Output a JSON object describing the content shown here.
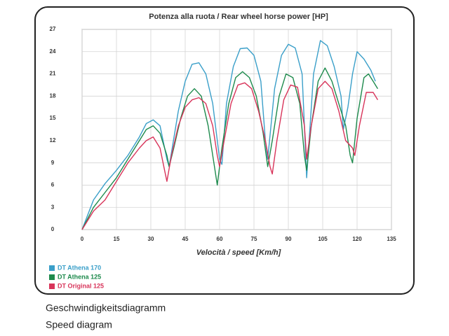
{
  "chart_data": {
    "type": "line",
    "title": "Potenza alla ruota / Rear wheel horse power [HP]",
    "x_label": "Velocità / speed [Km/h]",
    "xlim": [
      0,
      135
    ],
    "xticks": [
      0,
      15,
      30,
      45,
      60,
      75,
      90,
      105,
      120,
      135
    ],
    "ylim": [
      0,
      27
    ],
    "yticks": [
      0,
      3,
      6,
      9,
      12,
      15,
      18,
      21,
      24,
      27
    ],
    "grid": true,
    "legend": "lower left",
    "series": [
      {
        "name": "DT Athena 170",
        "color": "#3a9fc9",
        "x": [
          0,
          5,
          10,
          15,
          20,
          25,
          28,
          31,
          34,
          37,
          38,
          42,
          45,
          48,
          51,
          54,
          57,
          60,
          61,
          63,
          66,
          69,
          72,
          75,
          78,
          80,
          81,
          84,
          87,
          90,
          93,
          96,
          97,
          98,
          101,
          104,
          107,
          110,
          113,
          114,
          116,
          118,
          120,
          123,
          126,
          128
        ],
        "values": [
          0,
          4,
          6.2,
          8,
          10,
          12.5,
          14.3,
          14.8,
          14,
          9.5,
          8.5,
          16,
          20,
          22.3,
          22.5,
          21,
          17,
          9.5,
          8.8,
          17,
          22,
          24.4,
          24.5,
          23.5,
          20,
          12,
          9.5,
          19,
          23.5,
          25,
          24.5,
          21,
          14,
          7,
          21,
          25.5,
          24.8,
          22,
          18,
          13.5,
          16.5,
          21,
          24,
          23,
          21.5,
          20
        ]
      },
      {
        "name": "DT Athena 125",
        "color": "#1d8a4c",
        "x": [
          0,
          5,
          10,
          15,
          20,
          25,
          28,
          31,
          34,
          37,
          38,
          40,
          43,
          46,
          49,
          52,
          55,
          58,
          59,
          61,
          64,
          67,
          70,
          73,
          76,
          79,
          81,
          83,
          86,
          89,
          92,
          95,
          97,
          98,
          100,
          103,
          106,
          109,
          112,
          115,
          117,
          118,
          120,
          123,
          125,
          127,
          129
        ],
        "values": [
          0,
          3,
          5,
          7,
          9.5,
          12,
          13.5,
          14,
          13,
          10,
          8.5,
          11,
          15,
          18,
          19,
          18,
          14,
          8,
          6,
          11,
          17,
          20.5,
          21.3,
          20.5,
          18,
          13,
          8.5,
          12,
          18,
          21,
          20.5,
          17,
          10,
          8,
          14,
          20,
          21.8,
          20,
          17,
          14,
          10,
          9,
          15,
          20.5,
          21,
          20,
          19
        ]
      },
      {
        "name": "DT Original 125",
        "color": "#d8345a",
        "x": [
          0,
          5,
          10,
          15,
          20,
          25,
          28,
          31,
          34,
          36,
          37,
          39,
          42,
          45,
          48,
          51,
          54,
          57,
          59,
          60,
          62,
          65,
          68,
          71,
          74,
          77,
          80,
          82,
          83,
          85,
          88,
          91,
          94,
          97,
          98,
          100,
          103,
          106,
          109,
          112,
          115,
          118,
          119,
          121,
          124,
          127,
          129
        ],
        "values": [
          0,
          2.5,
          4,
          6.5,
          9,
          11,
          12,
          12.5,
          11,
          8,
          6.5,
          10,
          14,
          16.5,
          17.5,
          17.8,
          17,
          14,
          10,
          8.5,
          12,
          17,
          19.5,
          19.8,
          19,
          16,
          12,
          8.5,
          7.5,
          12,
          17.5,
          19.5,
          19.2,
          14,
          9.5,
          14,
          19,
          20,
          19,
          16,
          12,
          11,
          10,
          14,
          18.5,
          18.5,
          17.5
        ]
      }
    ]
  },
  "caption": [
    "Geschwindigkeitsdiagramm",
    "Speed diagram"
  ]
}
